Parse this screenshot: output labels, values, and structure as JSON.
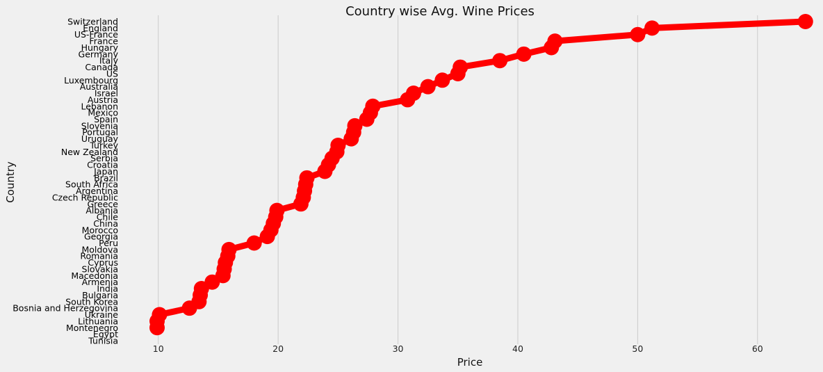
{
  "chart_data": {
    "type": "line",
    "title": "Country wise Avg. Wine Prices",
    "xlabel": "Price",
    "ylabel": "Country",
    "xlim": [
      7,
      65
    ],
    "xticks": [
      10,
      20,
      30,
      40,
      50,
      60
    ],
    "grid": "vertical",
    "series_color": "#ff0000",
    "background": "#f0f0f0",
    "categories": [
      "Switzerland",
      "England",
      "US-France",
      "France",
      "Hungary",
      "Germany",
      "Italy",
      "Canada",
      "US",
      "Luxembourg",
      "Australia",
      "Israel",
      "Austria",
      "Lebanon",
      "Mexico",
      "Spain",
      "Slovenia",
      "Portugal",
      "Uruguay",
      "Turkey",
      "New Zealand",
      "Serbia",
      "Croatia",
      "Japan",
      "Brazil",
      "South Africa",
      "Argentina",
      "Czech Republic",
      "Greece",
      "Albania",
      "Chile",
      "China",
      "Morocco",
      "Georgia",
      "Peru",
      "Moldova",
      "Romania",
      "Cyprus",
      "Slovakia",
      "Macedonia",
      "Armenia",
      "India",
      "Bulgaria",
      "South Korea",
      "Bosnia and Herzegovina",
      "Ukraine",
      "Lithuania",
      "Montenegro",
      "Egypt",
      "Tunisia"
    ],
    "values": [
      64.0,
      51.2,
      50.0,
      43.1,
      42.8,
      40.5,
      38.5,
      35.2,
      35.0,
      33.7,
      32.5,
      31.3,
      30.8,
      27.9,
      27.7,
      27.4,
      26.4,
      26.3,
      26.1,
      25.0,
      24.9,
      24.5,
      24.2,
      23.9,
      22.4,
      22.3,
      22.2,
      22.1,
      21.9,
      19.9,
      19.8,
      19.6,
      19.4,
      19.1,
      18.0,
      15.9,
      15.8,
      15.6,
      15.5,
      15.4,
      14.5,
      13.6,
      13.5,
      13.4,
      12.6,
      10.1,
      9.9,
      9.9,
      null,
      null
    ]
  }
}
